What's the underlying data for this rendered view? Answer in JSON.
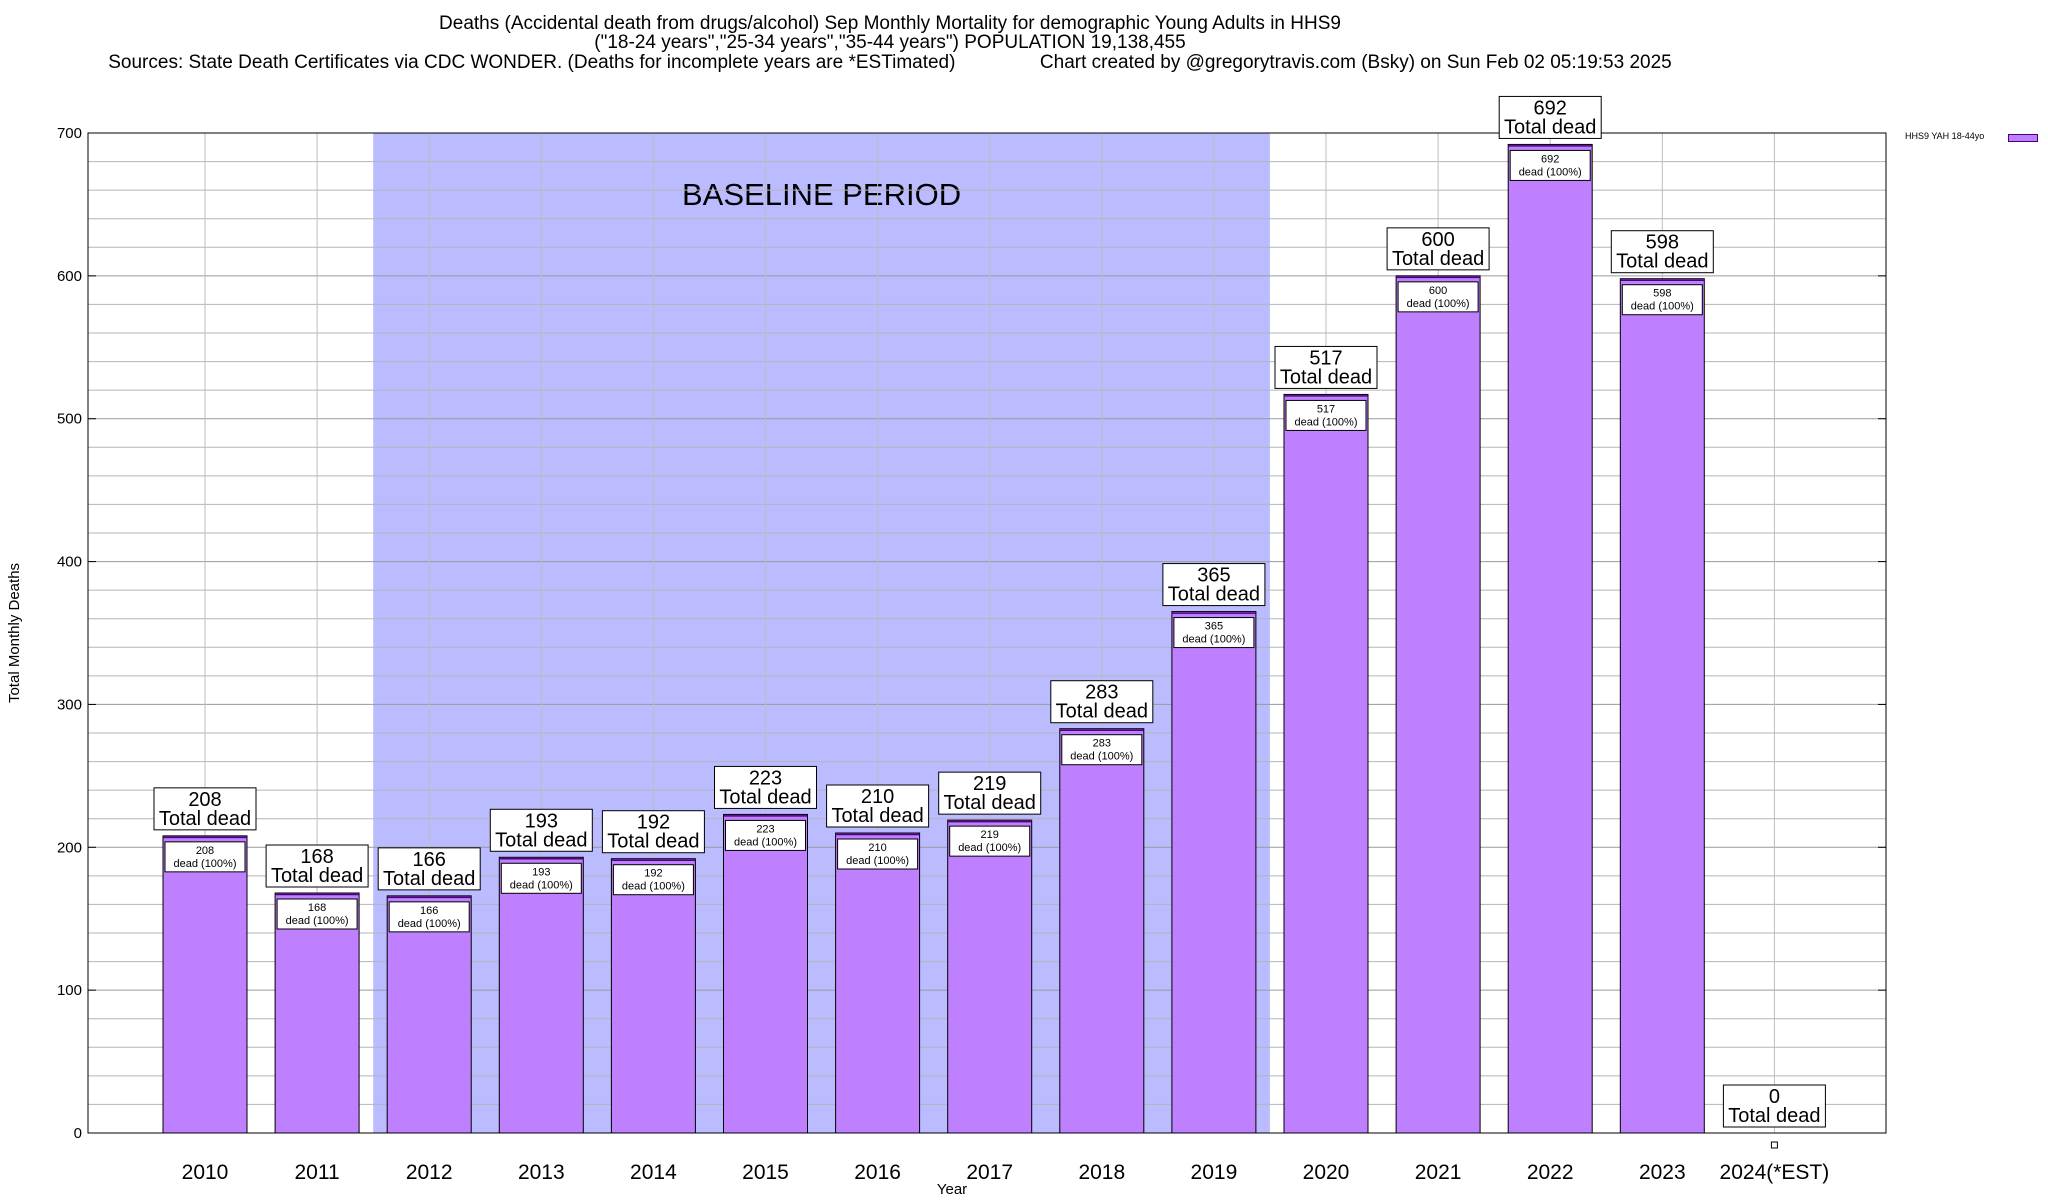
{
  "header": {
    "line1": "Deaths (Accidental death from drugs/alcohol) Sep Monthly Mortality for demographic Young Adults in HHS9",
    "line2": "(\"18-24 years\",\"25-34 years\",\"35-44 years\") POPULATION 19,138,455",
    "line3": "Sources: State Death Certificates via CDC WONDER. (Deaths for incomplete years are *ESTimated)                Chart created by @gregorytravis.com (Bsky) on Sun Feb 02 05:19:53 2025"
  },
  "legend": {
    "label": "HHS9 YAH 18-44yo"
  },
  "colors": {
    "bar": "#bf80ff",
    "bar_border": "#4b0082",
    "baseline_band": "#bbbbff"
  },
  "chart_data": {
    "type": "bar",
    "title": "Deaths (Accidental death from drugs/alcohol) Sep Monthly Mortality for demographic Young Adults in HHS9",
    "xlabel": "Year",
    "ylabel": "Total Monthly Deaths",
    "ylim": [
      0,
      700
    ],
    "yticks": [
      0,
      100,
      200,
      300,
      400,
      500,
      600,
      700
    ],
    "grid": true,
    "legend_position": "top-right",
    "categories": [
      "2010",
      "2011",
      "2012",
      "2013",
      "2014",
      "2015",
      "2016",
      "2017",
      "2018",
      "2019",
      "2020",
      "2021",
      "2022",
      "2023",
      "2024(*EST)"
    ],
    "series": [
      {
        "name": "HHS9 YAH 18-44yo",
        "values": [
          208,
          168,
          166,
          193,
          192,
          223,
          210,
          219,
          283,
          365,
          517,
          600,
          692,
          598,
          0
        ]
      }
    ],
    "baseline_period": {
      "label": "BASELINE PERIOD",
      "start": "2012",
      "end": "2019"
    },
    "label_total_suffix": "Total dead",
    "label_inner_suffix": "dead (100%)"
  }
}
